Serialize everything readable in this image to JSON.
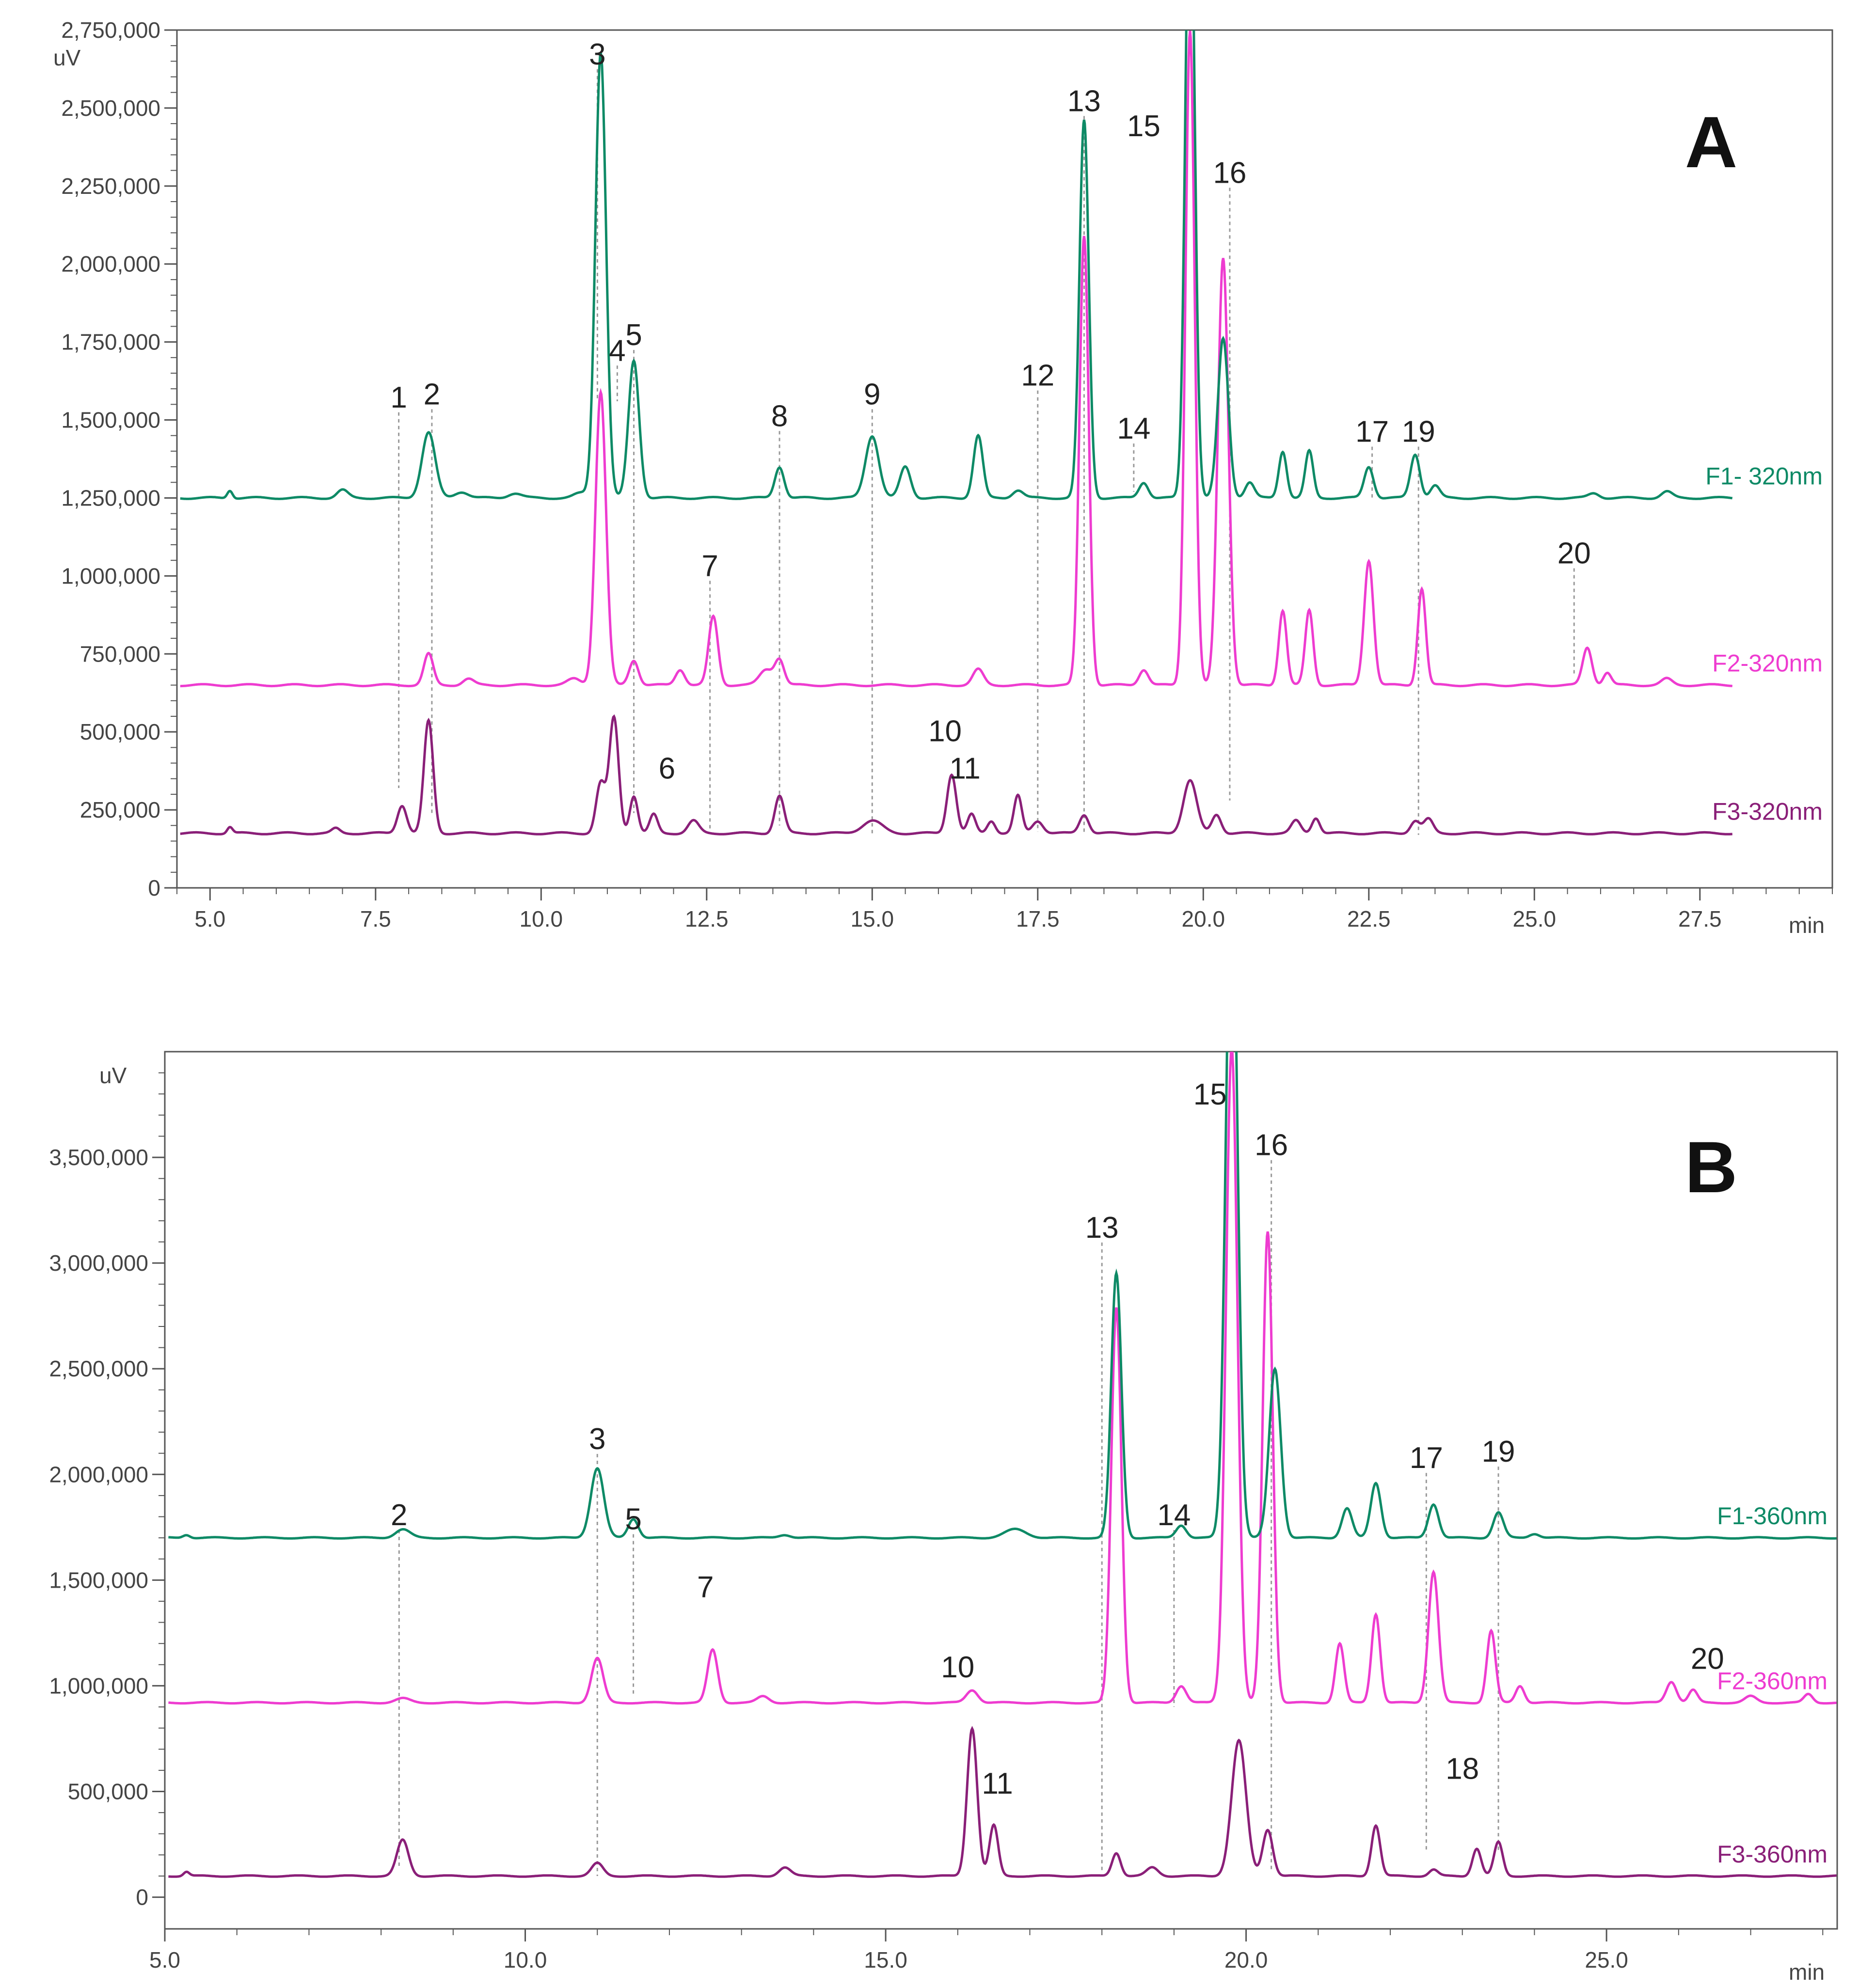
{
  "chart_data": [
    {
      "panel_label": "A",
      "type": "line",
      "ylabel": "uV",
      "xlabel": "min",
      "ylim": [
        0,
        2750000
      ],
      "xlim": [
        4.5,
        29.5
      ],
      "ytick_values": [
        0,
        250000,
        500000,
        750000,
        1000000,
        1250000,
        1500000,
        1750000,
        2000000,
        2250000,
        2500000,
        2750000
      ],
      "ytick_labels": [
        "0",
        "250,000",
        "500,000",
        "750,000",
        "1,000,000",
        "1,250,000",
        "1,500,000",
        "1,750,000",
        "2,000,000",
        "2,250,000",
        "2,500,000",
        "2,750,000"
      ],
      "xtick_values": [
        5,
        7.5,
        10,
        12.5,
        15,
        17.5,
        20,
        22.5,
        25,
        27.5
      ],
      "xtick_labels": [
        "5.0",
        "7.5",
        "10.0",
        "12.5",
        "15.0",
        "17.5",
        "20.0",
        "22.5",
        "25.0",
        "27.5"
      ],
      "series": [
        {
          "name": "F1- 320nm",
          "color": "#0e8a66",
          "baseline": 1250000,
          "x_end": 28.0,
          "peaks": [
            [
              5.3,
              25000,
              0.04
            ],
            [
              7.0,
              25000,
              0.08
            ],
            [
              8.3,
              210000,
              0.1
            ],
            [
              8.8,
              20000,
              0.1
            ],
            [
              9.6,
              15000,
              0.1
            ],
            [
              10.6,
              15000,
              0.1
            ],
            [
              10.9,
              1430000,
              0.08
            ],
            [
              11.4,
              440000,
              0.08
            ],
            [
              13.6,
              100000,
              0.07
            ],
            [
              15.0,
              200000,
              0.1
            ],
            [
              15.5,
              100000,
              0.08
            ],
            [
              16.6,
              200000,
              0.07
            ],
            [
              17.2,
              25000,
              0.08
            ],
            [
              18.2,
              1210000,
              0.07
            ],
            [
              19.1,
              50000,
              0.07
            ],
            [
              19.8,
              2100000,
              0.07
            ],
            [
              20.3,
              510000,
              0.08
            ],
            [
              20.7,
              50000,
              0.07
            ],
            [
              21.2,
              150000,
              0.06
            ],
            [
              21.6,
              150000,
              0.06
            ],
            [
              22.5,
              100000,
              0.07
            ],
            [
              23.2,
              140000,
              0.07
            ],
            [
              23.5,
              40000,
              0.07
            ],
            [
              25.9,
              15000,
              0.08
            ],
            [
              27.0,
              20000,
              0.08
            ]
          ]
        },
        {
          "name": "F2-320nm",
          "color": "#ee3cd0",
          "baseline": 650000,
          "x_end": 28.0,
          "peaks": [
            [
              8.3,
              100000,
              0.07
            ],
            [
              8.9,
              20000,
              0.08
            ],
            [
              10.5,
              20000,
              0.1
            ],
            [
              10.9,
              940000,
              0.08
            ],
            [
              11.4,
              80000,
              0.07
            ],
            [
              12.1,
              50000,
              0.07
            ],
            [
              12.6,
              220000,
              0.07
            ],
            [
              13.4,
              50000,
              0.1
            ],
            [
              13.6,
              80000,
              0.07
            ],
            [
              16.6,
              50000,
              0.08
            ],
            [
              18.2,
              1440000,
              0.07
            ],
            [
              19.1,
              50000,
              0.07
            ],
            [
              19.8,
              2100000,
              0.07
            ],
            [
              20.3,
              1370000,
              0.08
            ],
            [
              21.2,
              240000,
              0.06
            ],
            [
              21.6,
              240000,
              0.06
            ],
            [
              22.5,
              400000,
              0.07
            ],
            [
              23.3,
              310000,
              0.06
            ],
            [
              25.8,
              120000,
              0.07
            ],
            [
              26.1,
              40000,
              0.06
            ],
            [
              27.0,
              20000,
              0.08
            ]
          ]
        },
        {
          "name": "F3-320nm",
          "color": "#8a1f78",
          "baseline": 175000,
          "x_end": 28.0,
          "peaks": [
            [
              5.3,
              20000,
              0.04
            ],
            [
              6.9,
              15000,
              0.06
            ],
            [
              7.9,
              90000,
              0.07
            ],
            [
              8.3,
              360000,
              0.07
            ],
            [
              10.9,
              160000,
              0.07
            ],
            [
              11.1,
              370000,
              0.07
            ],
            [
              11.4,
              120000,
              0.06
            ],
            [
              11.7,
              60000,
              0.06
            ],
            [
              12.3,
              40000,
              0.08
            ],
            [
              13.6,
              120000,
              0.07
            ],
            [
              15.0,
              40000,
              0.15
            ],
            [
              16.2,
              190000,
              0.07
            ],
            [
              16.5,
              60000,
              0.06
            ],
            [
              16.8,
              40000,
              0.06
            ],
            [
              17.2,
              120000,
              0.06
            ],
            [
              17.5,
              40000,
              0.08
            ],
            [
              18.2,
              60000,
              0.07
            ],
            [
              19.8,
              170000,
              0.1
            ],
            [
              20.2,
              60000,
              0.07
            ],
            [
              21.4,
              40000,
              0.07
            ],
            [
              21.7,
              50000,
              0.06
            ],
            [
              23.2,
              40000,
              0.07
            ],
            [
              23.4,
              45000,
              0.07
            ]
          ]
        }
      ],
      "peak_labels": [
        {
          "text": "1",
          "x": 7.85,
          "y": 1540000,
          "line_to": 320000
        },
        {
          "text": "2",
          "x": 8.35,
          "y": 1550000,
          "line_to": 240000
        },
        {
          "text": "3",
          "x": 10.85,
          "y": 2640000,
          "line_to": 1560000
        },
        {
          "text": "4",
          "x": 11.15,
          "y": 1690000,
          "line_to": 1560000
        },
        {
          "text": "5",
          "x": 11.4,
          "y": 1740000,
          "line_to": 240000
        },
        {
          "text": "6",
          "x": 11.9,
          "y": 350000,
          "line_to": null
        },
        {
          "text": "7",
          "x": 12.55,
          "y": 1000000,
          "line_to": 180000
        },
        {
          "text": "8",
          "x": 13.6,
          "y": 1480000,
          "line_to": 200000
        },
        {
          "text": "9",
          "x": 15.0,
          "y": 1550000,
          "line_to": 170000
        },
        {
          "text": "10",
          "x": 16.1,
          "y": 470000,
          "line_to": null
        },
        {
          "text": "11",
          "x": 16.4,
          "y": 350000,
          "line_to": null
        },
        {
          "text": "12",
          "x": 17.5,
          "y": 1610000,
          "line_to": 180000
        },
        {
          "text": "13",
          "x": 18.2,
          "y": 2490000,
          "line_to": 170000
        },
        {
          "text": "14",
          "x": 18.95,
          "y": 1440000,
          "line_to": 1270000
        },
        {
          "text": "15",
          "x": 19.1,
          "y": 2410000,
          "line_to": null
        },
        {
          "text": "16",
          "x": 20.4,
          "y": 2260000,
          "line_to": 280000
        },
        {
          "text": "17",
          "x": 22.55,
          "y": 1430000,
          "line_to": 1250000
        },
        {
          "text": "19",
          "x": 23.25,
          "y": 1430000,
          "line_to": 170000
        },
        {
          "text": "20",
          "x": 25.6,
          "y": 1040000,
          "line_to": 680000
        }
      ],
      "corner_label": "A"
    },
    {
      "panel_label": "B",
      "type": "line",
      "ylabel": "uV",
      "xlabel": "min",
      "ylim": [
        -150000,
        4000000
      ],
      "xlim": [
        5.0,
        28.2
      ],
      "ytick_values": [
        0,
        500000,
        1000000,
        1500000,
        2000000,
        2500000,
        3000000,
        3500000
      ],
      "ytick_labels": [
        "0",
        "500,000",
        "1,000,000",
        "1,500,000",
        "2,000,000",
        "2,500,000",
        "3,000,000",
        "3,500,000"
      ],
      "xtick_values": [
        5,
        10,
        15,
        20,
        25
      ],
      "xtick_labels": [
        "5.0",
        "10.0",
        "15.0",
        "20.0",
        "25.0"
      ],
      "series": [
        {
          "name": "F1-360nm",
          "color": "#0e8a66",
          "baseline": 1700000,
          "x_end": 28.2,
          "peaks": [
            [
              5.3,
              15000,
              0.05
            ],
            [
              8.3,
              40000,
              0.1
            ],
            [
              11.0,
              330000,
              0.09
            ],
            [
              11.5,
              90000,
              0.07
            ],
            [
              13.6,
              15000,
              0.08
            ],
            [
              16.8,
              40000,
              0.15
            ],
            [
              18.2,
              1250000,
              0.07
            ],
            [
              19.1,
              60000,
              0.07
            ],
            [
              19.8,
              3200000,
              0.08
            ],
            [
              20.4,
              800000,
              0.08
            ],
            [
              21.4,
              140000,
              0.07
            ],
            [
              21.8,
              260000,
              0.07
            ],
            [
              22.6,
              160000,
              0.07
            ],
            [
              23.5,
              120000,
              0.07
            ],
            [
              24.0,
              20000,
              0.07
            ]
          ]
        },
        {
          "name": "F2-360nm",
          "color": "#ee3cd0",
          "baseline": 920000,
          "x_end": 28.2,
          "peaks": [
            [
              8.3,
              20000,
              0.1
            ],
            [
              11.0,
              210000,
              0.08
            ],
            [
              12.6,
              250000,
              0.07
            ],
            [
              13.3,
              30000,
              0.08
            ],
            [
              16.2,
              60000,
              0.08
            ],
            [
              18.2,
              1870000,
              0.07
            ],
            [
              19.1,
              80000,
              0.07
            ],
            [
              19.8,
              3100000,
              0.08
            ],
            [
              20.3,
              2230000,
              0.07
            ],
            [
              21.3,
              280000,
              0.06
            ],
            [
              21.8,
              420000,
              0.06
            ],
            [
              22.6,
              620000,
              0.07
            ],
            [
              23.4,
              340000,
              0.06
            ],
            [
              23.8,
              80000,
              0.06
            ],
            [
              25.9,
              100000,
              0.07
            ],
            [
              26.2,
              60000,
              0.06
            ],
            [
              27.0,
              30000,
              0.08
            ],
            [
              27.8,
              40000,
              0.06
            ]
          ]
        },
        {
          "name": "F3-360nm",
          "color": "#8a1f78",
          "baseline": 100000,
          "x_end": 28.2,
          "peaks": [
            [
              5.3,
              20000,
              0.04
            ],
            [
              8.3,
              170000,
              0.08
            ],
            [
              11.0,
              60000,
              0.08
            ],
            [
              13.6,
              40000,
              0.08
            ],
            [
              16.2,
              700000,
              0.07
            ],
            [
              16.5,
              240000,
              0.06
            ],
            [
              18.2,
              110000,
              0.06
            ],
            [
              18.7,
              40000,
              0.08
            ],
            [
              19.9,
              640000,
              0.1
            ],
            [
              20.3,
              220000,
              0.07
            ],
            [
              21.8,
              240000,
              0.06
            ],
            [
              22.6,
              30000,
              0.06
            ],
            [
              23.2,
              130000,
              0.06
            ],
            [
              23.5,
              160000,
              0.06
            ]
          ]
        }
      ],
      "peak_labels": [
        {
          "text": "2",
          "x": 8.25,
          "y": 1760000,
          "line_to": 140000
        },
        {
          "text": "3",
          "x": 11.0,
          "y": 2120000,
          "line_to": 100000
        },
        {
          "text": "5",
          "x": 11.5,
          "y": 1740000,
          "line_to": 960000
        },
        {
          "text": "7",
          "x": 12.5,
          "y": 1420000,
          "line_to": null
        },
        {
          "text": "10",
          "x": 16.0,
          "y": 1040000,
          "line_to": null
        },
        {
          "text": "11",
          "x": 16.55,
          "y": 490000,
          "line_to": null
        },
        {
          "text": "13",
          "x": 18.0,
          "y": 3120000,
          "line_to": 120000
        },
        {
          "text": "14",
          "x": 19.0,
          "y": 1760000,
          "line_to": 900000
        },
        {
          "text": "15",
          "x": 19.5,
          "y": 3750000,
          "line_to": null
        },
        {
          "text": "16",
          "x": 20.35,
          "y": 3510000,
          "line_to": 120000
        },
        {
          "text": "17",
          "x": 22.5,
          "y": 2030000,
          "line_to": 220000
        },
        {
          "text": "18",
          "x": 23.0,
          "y": 560000,
          "line_to": null
        },
        {
          "text": "19",
          "x": 23.5,
          "y": 2060000,
          "line_to": 220000
        },
        {
          "text": "20",
          "x": 26.4,
          "y": 1080000,
          "line_to": null
        }
      ],
      "corner_label": "B"
    }
  ]
}
